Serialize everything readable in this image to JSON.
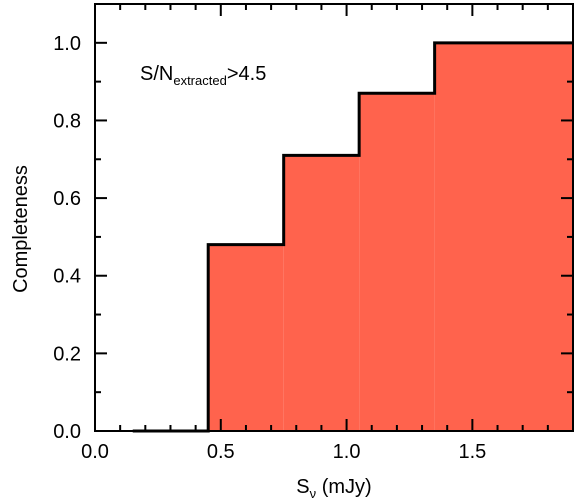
{
  "chart_data": {
    "type": "area",
    "style": "step-histogram",
    "xlabel_base": "S",
    "xlabel_sub": "ν",
    "xlabel_rest": " (mJy)",
    "ylabel": "Completeness",
    "xlim": [
      0.0,
      1.9
    ],
    "ylim": [
      0.0,
      1.1
    ],
    "xticks": [
      "0.0",
      "0.5",
      "1.0",
      "1.5"
    ],
    "yticks": [
      "0.0",
      "0.2",
      "0.4",
      "0.6",
      "0.8",
      "1.0"
    ],
    "grid": false,
    "fill_color": "#ff634d",
    "bins": [
      {
        "x0": 0.15,
        "x1": 0.45,
        "value": 0.0
      },
      {
        "x0": 0.45,
        "x1": 0.75,
        "value": 0.48
      },
      {
        "x0": 0.75,
        "x1": 1.05,
        "value": 0.71
      },
      {
        "x0": 1.05,
        "x1": 1.35,
        "value": 0.87
      },
      {
        "x0": 1.35,
        "x1": 1.9,
        "value": 1.0
      }
    ],
    "annotation": {
      "prefix": "S/N",
      "subscript": "extracted",
      "suffix": ">4.5"
    }
  }
}
